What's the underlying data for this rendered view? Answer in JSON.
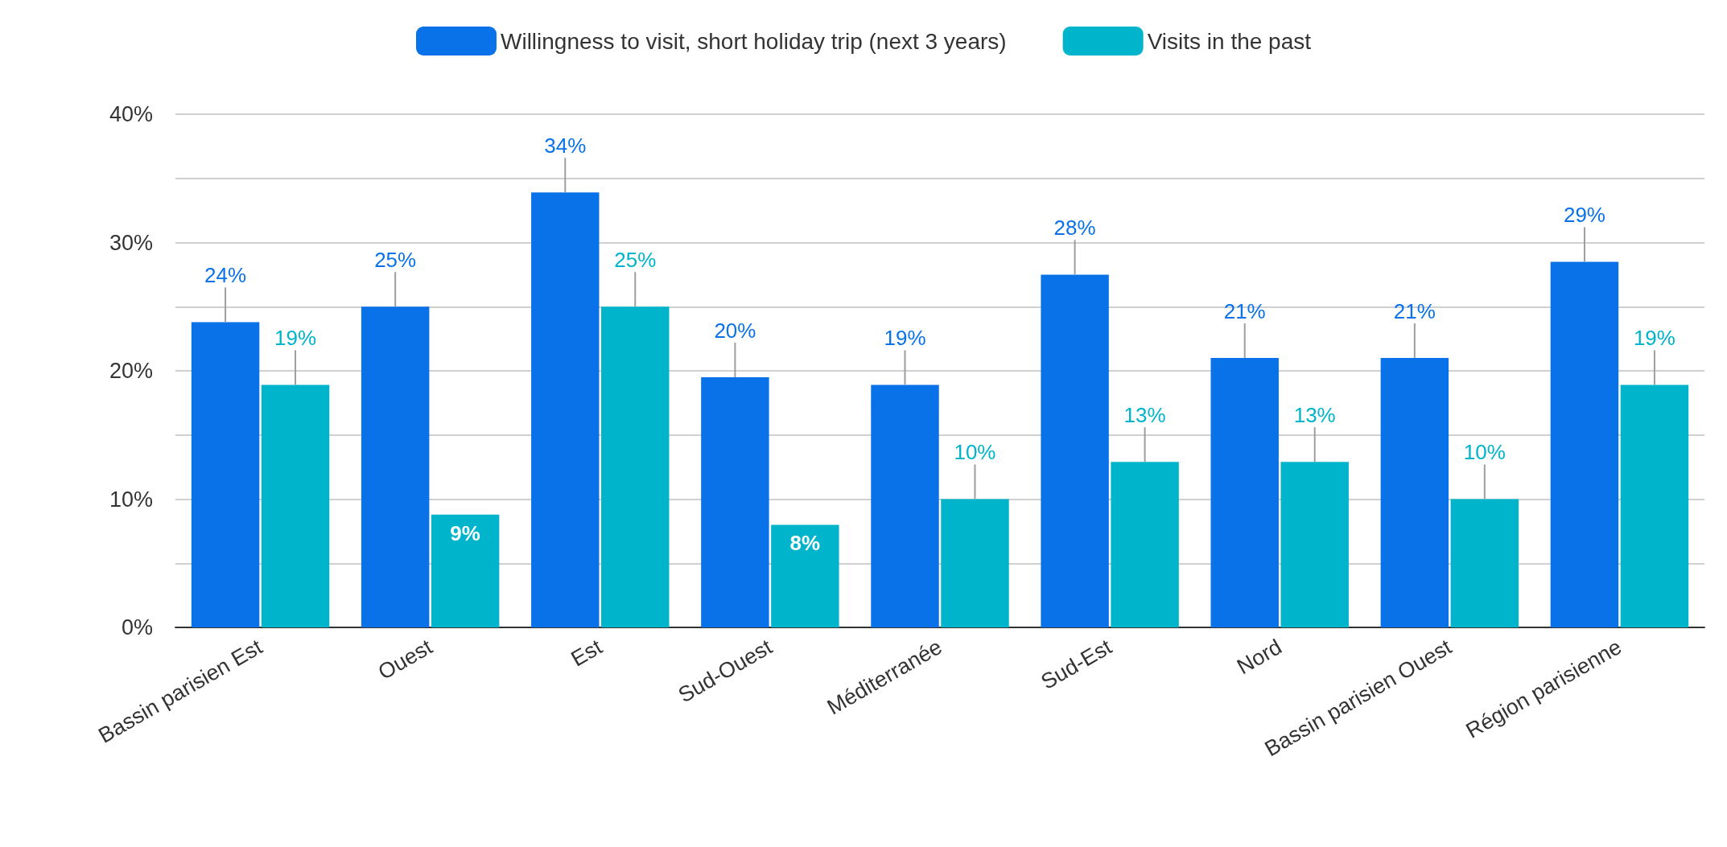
{
  "chart_data": {
    "type": "bar",
    "categories": [
      "Bassin parisien Est",
      "Ouest",
      "Est",
      "Sud-Ouest",
      "Méditerranée",
      "Sud-Est",
      "Nord",
      "Bassin parisien Ouest",
      "Région parisienne"
    ],
    "series": [
      {
        "name": "Willingness to visit, short holiday trip (next 3 years)",
        "color": "#0a72e8",
        "values": [
          23.8,
          25.0,
          33.9,
          19.5,
          18.9,
          27.5,
          21.0,
          21.0,
          28.5
        ],
        "errors": [
          2.7,
          2.7,
          2.7,
          2.7,
          2.7,
          2.7,
          2.7,
          2.7,
          2.7
        ],
        "value_labels": [
          "24%",
          "25%",
          "34%",
          "20%",
          "19%",
          "28%",
          "21%",
          "21%",
          "29%"
        ]
      },
      {
        "name": "Visits in the past",
        "color": "#00b4cb",
        "values": [
          18.9,
          8.8,
          25.0,
          8.0,
          10.0,
          12.9,
          12.9,
          10.0,
          18.9
        ],
        "errors": [
          2.7,
          null,
          2.7,
          null,
          2.7,
          2.7,
          2.7,
          2.7,
          2.7
        ],
        "value_labels": [
          "19%",
          "9%",
          "25%",
          "8%",
          "10%",
          "13%",
          "13%",
          "10%",
          "19%"
        ]
      }
    ],
    "ylim": [
      0,
      40
    ],
    "yticks": [
      {
        "value": 0,
        "label": "0%"
      },
      {
        "value": 5,
        "label": null
      },
      {
        "value": 10,
        "label": "10%"
      },
      {
        "value": 15,
        "label": null
      },
      {
        "value": 20,
        "label": "20%"
      },
      {
        "value": 25,
        "label": null
      },
      {
        "value": 30,
        "label": "30%"
      },
      {
        "value": 35,
        "label": null
      },
      {
        "value": 40,
        "label": "40%"
      }
    ],
    "grid": "y",
    "legend": "top"
  }
}
